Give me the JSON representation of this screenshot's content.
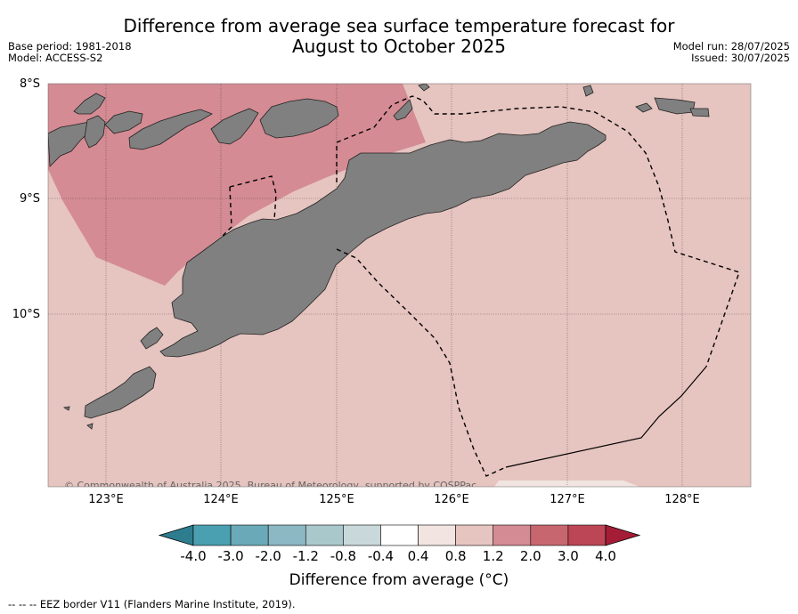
{
  "title_line1": "Difference from average sea surface temperature forecast for",
  "title_line2": "August to October 2025",
  "base_period": "Base period: 1981-2018",
  "model": "Model: ACCESS-S2",
  "model_run": "Model run: 28/07/2025",
  "issued": "Issued: 30/07/2025",
  "copyright": "© Commonwealth of Australia 2025, Bureau of Meteorology, supported by COSPPac",
  "lat_labels": [
    "8°S",
    "9°S",
    "10°S"
  ],
  "lon_labels": [
    "123°E",
    "124°E",
    "125°E",
    "126°E",
    "127°E",
    "128°E"
  ],
  "colorbar": {
    "ticks": [
      "-4.0",
      "-3.0",
      "-2.0",
      "-1.2",
      "-0.8",
      "-0.4",
      "0.4",
      "0.8",
      "1.2",
      "2.0",
      "3.0",
      "4.0"
    ],
    "colors": [
      "#2e7d8f",
      "#4aa0b0",
      "#6aaab8",
      "#8cb8c4",
      "#a9c8cc",
      "#c9d8da",
      "#ffffff",
      "#f1e4e1",
      "#e6c4bf",
      "#d48b93",
      "#c8666f",
      "#bc4655",
      "#a51c37"
    ],
    "label": "Difference from average (°C)"
  },
  "colors": {
    "ocean_base": "#e6c4bf",
    "warm_zone": "#d48b93",
    "neutral_zone": "#f1e4e1",
    "land": "#808080"
  },
  "legend_note": "--  --  -- EEZ border V11 (Flanders Marine Institute, 2019)."
}
